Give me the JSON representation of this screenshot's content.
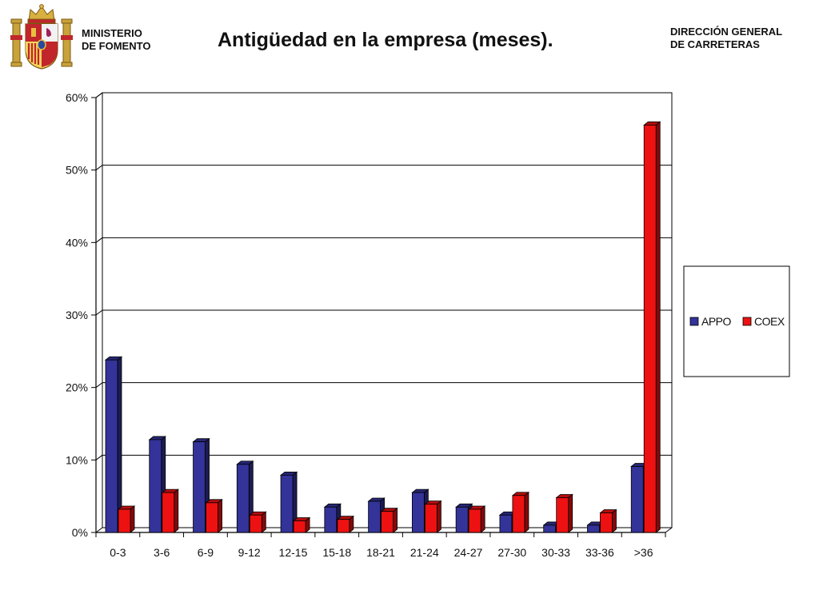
{
  "header": {
    "ministry_line1": "MINISTERIO",
    "ministry_line2": "DE FOMENTO",
    "title": "Antigüedad en la empresa (meses).",
    "dgc_line1": "DIRECCIÓN GENERAL",
    "dgc_line2": "DE CARRETERAS",
    "logo_icon": "spain-coat-of-arms-icon"
  },
  "colors": {
    "APPO": "#333399",
    "COEX": "#ee1111",
    "gridline": "#000000"
  },
  "chart_data": {
    "type": "bar",
    "title": "Antigüedad en la empresa (meses).",
    "xlabel": "",
    "ylabel": "",
    "categories": [
      "0-3",
      "3-6",
      "6-9",
      "9-12",
      "12-15",
      "15-18",
      "18-21",
      "21-24",
      "24-27",
      "27-30",
      "30-33",
      "33-36",
      ">36"
    ],
    "series": [
      {
        "name": "APPO",
        "values": [
          23.8,
          12.8,
          12.5,
          9.4,
          7.9,
          3.5,
          4.3,
          5.5,
          3.5,
          2.4,
          1.0,
          1.0,
          9.1
        ]
      },
      {
        "name": "COEX",
        "values": [
          3.2,
          5.5,
          4.1,
          2.4,
          1.6,
          1.8,
          2.9,
          3.9,
          3.2,
          5.1,
          4.8,
          2.7,
          56.2
        ]
      }
    ],
    "ylim": [
      0,
      60
    ],
    "yticks": [
      0,
      10,
      20,
      30,
      40,
      50,
      60
    ],
    "ytick_labels": [
      "0%",
      "10%",
      "20%",
      "30%",
      "40%",
      "50%",
      "60%"
    ],
    "grid": true,
    "bar_style": "3d",
    "legend_position": "right"
  }
}
